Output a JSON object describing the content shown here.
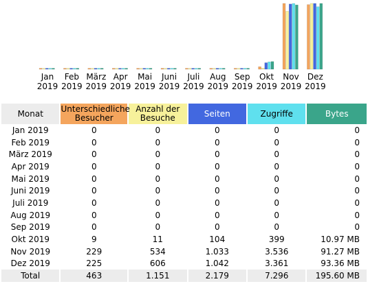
{
  "colors": {
    "visitors": "#f4a55d",
    "visits": "#f7f19b",
    "pages": "#4268e0",
    "hits": "#5fe0ee",
    "bytes": "#3aa58a"
  },
  "chart_data": {
    "type": "bar",
    "categories": [
      [
        "Jan",
        "2019"
      ],
      [
        "Feb",
        "2019"
      ],
      [
        "März",
        "2019"
      ],
      [
        "Apr",
        "2019"
      ],
      [
        "Mai",
        "2019"
      ],
      [
        "Juni",
        "2019"
      ],
      [
        "Juli",
        "2019"
      ],
      [
        "Aug",
        "2019"
      ],
      [
        "Sep",
        "2019"
      ],
      [
        "Okt",
        "2019"
      ],
      [
        "Nov",
        "2019"
      ],
      [
        "Dez",
        "2019"
      ]
    ],
    "series": [
      {
        "name": "Unterschiedliche Besucher",
        "color": "#f4a55d",
        "values": [
          0,
          0,
          0,
          0,
          0,
          0,
          0,
          0,
          0,
          9,
          229,
          225
        ]
      },
      {
        "name": "Anzahl der Besuche",
        "color": "#f7f19b",
        "values": [
          0,
          0,
          0,
          0,
          0,
          0,
          0,
          0,
          0,
          11,
          534,
          606
        ]
      },
      {
        "name": "Seiten",
        "color": "#4268e0",
        "values": [
          0,
          0,
          0,
          0,
          0,
          0,
          0,
          0,
          0,
          104,
          1033,
          1042
        ]
      },
      {
        "name": "Zugriffe",
        "color": "#5fe0ee",
        "values": [
          0,
          0,
          0,
          0,
          0,
          0,
          0,
          0,
          0,
          399,
          3536,
          3361
        ]
      },
      {
        "name": "Bytes",
        "color": "#3aa58a",
        "values": [
          0,
          0,
          0,
          0,
          0,
          0,
          0,
          0,
          0,
          10.97,
          91.27,
          93.36
        ]
      }
    ]
  },
  "table": {
    "headers": {
      "month": "Monat",
      "visitors": "Unterschiedliche Besucher",
      "visits": "Anzahl der Besuche",
      "pages": "Seiten",
      "hits": "Zugriffe",
      "bytes": "Bytes"
    },
    "rows": [
      {
        "month": "Jan 2019",
        "visitors": "0",
        "visits": "0",
        "pages": "0",
        "hits": "0",
        "bytes": "0"
      },
      {
        "month": "Feb 2019",
        "visitors": "0",
        "visits": "0",
        "pages": "0",
        "hits": "0",
        "bytes": "0"
      },
      {
        "month": "März 2019",
        "visitors": "0",
        "visits": "0",
        "pages": "0",
        "hits": "0",
        "bytes": "0"
      },
      {
        "month": "Apr 2019",
        "visitors": "0",
        "visits": "0",
        "pages": "0",
        "hits": "0",
        "bytes": "0"
      },
      {
        "month": "Mai 2019",
        "visitors": "0",
        "visits": "0",
        "pages": "0",
        "hits": "0",
        "bytes": "0"
      },
      {
        "month": "Juni 2019",
        "visitors": "0",
        "visits": "0",
        "pages": "0",
        "hits": "0",
        "bytes": "0"
      },
      {
        "month": "Juli 2019",
        "visitors": "0",
        "visits": "0",
        "pages": "0",
        "hits": "0",
        "bytes": "0"
      },
      {
        "month": "Aug 2019",
        "visitors": "0",
        "visits": "0",
        "pages": "0",
        "hits": "0",
        "bytes": "0"
      },
      {
        "month": "Sep 2019",
        "visitors": "0",
        "visits": "0",
        "pages": "0",
        "hits": "0",
        "bytes": "0"
      },
      {
        "month": "Okt 2019",
        "visitors": "9",
        "visits": "11",
        "pages": "104",
        "hits": "399",
        "bytes": "10.97 MB"
      },
      {
        "month": "Nov 2019",
        "visitors": "229",
        "visits": "534",
        "pages": "1.033",
        "hits": "3.536",
        "bytes": "91.27 MB"
      },
      {
        "month": "Dez 2019",
        "visitors": "225",
        "visits": "606",
        "pages": "1.042",
        "hits": "3.361",
        "bytes": "93.36 MB"
      }
    ],
    "total": {
      "month": "Total",
      "visitors": "463",
      "visits": "1.151",
      "pages": "2.179",
      "hits": "7.296",
      "bytes": "195.60 MB"
    }
  }
}
